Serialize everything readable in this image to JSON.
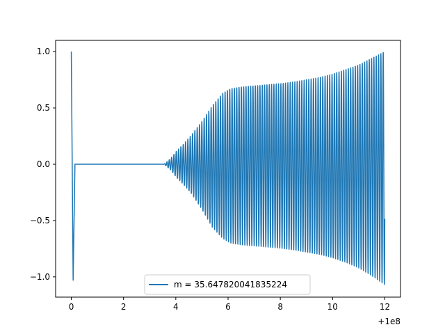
{
  "chart_data": {
    "type": "line",
    "title": "",
    "xlabel": "",
    "ylabel": "",
    "x_offset_label": "+1e8",
    "xlim": [
      -0.6,
      12.6
    ],
    "ylim": [
      -1.18,
      1.1
    ],
    "x_ticks": [
      0,
      2,
      4,
      6,
      8,
      10,
      12
    ],
    "x_tick_labels": [
      "0",
      "2",
      "4",
      "6",
      "8",
      "10",
      "12"
    ],
    "y_ticks": [
      -1.0,
      -0.5,
      0.0,
      0.5,
      1.0
    ],
    "y_tick_labels": [
      "−1.0",
      "−0.5",
      "0.0",
      "0.5",
      "1.0"
    ],
    "grid": false,
    "legend_position": "lower-center",
    "series": [
      {
        "name": "m = 35.647820041835224",
        "color": "#1f77b4",
        "x_start": 0.0,
        "x_end": 12.0,
        "initial_spike": [
          [
            0.0,
            1.0
          ],
          [
            0.07,
            -1.03
          ],
          [
            0.14,
            0.0
          ]
        ],
        "flat_until": 3.55,
        "oscillation_period": 0.089,
        "envelope": [
          [
            3.55,
            0.0
          ],
          [
            3.8,
            0.05
          ],
          [
            4.0,
            0.11
          ],
          [
            4.3,
            0.18
          ],
          [
            4.6,
            0.26
          ],
          [
            5.0,
            0.38
          ],
          [
            5.4,
            0.52
          ],
          [
            5.8,
            0.63
          ],
          [
            6.1,
            0.67
          ],
          [
            6.5,
            0.685
          ],
          [
            7.0,
            0.695
          ],
          [
            7.5,
            0.705
          ],
          [
            8.0,
            0.715
          ],
          [
            8.5,
            0.73
          ],
          [
            9.0,
            0.75
          ],
          [
            9.5,
            0.77
          ],
          [
            10.0,
            0.8
          ],
          [
            10.5,
            0.84
          ],
          [
            11.0,
            0.88
          ],
          [
            11.5,
            0.94
          ],
          [
            12.0,
            1.0
          ]
        ],
        "negative_envelope": [
          [
            3.55,
            0.0
          ],
          [
            3.8,
            0.05
          ],
          [
            4.0,
            0.11
          ],
          [
            4.3,
            0.18
          ],
          [
            4.6,
            0.26
          ],
          [
            5.0,
            0.4
          ],
          [
            5.4,
            0.56
          ],
          [
            5.8,
            0.66
          ],
          [
            6.1,
            0.7
          ],
          [
            6.5,
            0.715
          ],
          [
            7.0,
            0.725
          ],
          [
            7.5,
            0.735
          ],
          [
            8.0,
            0.745
          ],
          [
            8.5,
            0.76
          ],
          [
            9.0,
            0.78
          ],
          [
            9.5,
            0.8
          ],
          [
            10.0,
            0.83
          ],
          [
            10.5,
            0.87
          ],
          [
            11.0,
            0.92
          ],
          [
            11.5,
            0.99
          ],
          [
            12.0,
            1.07
          ]
        ]
      }
    ]
  }
}
